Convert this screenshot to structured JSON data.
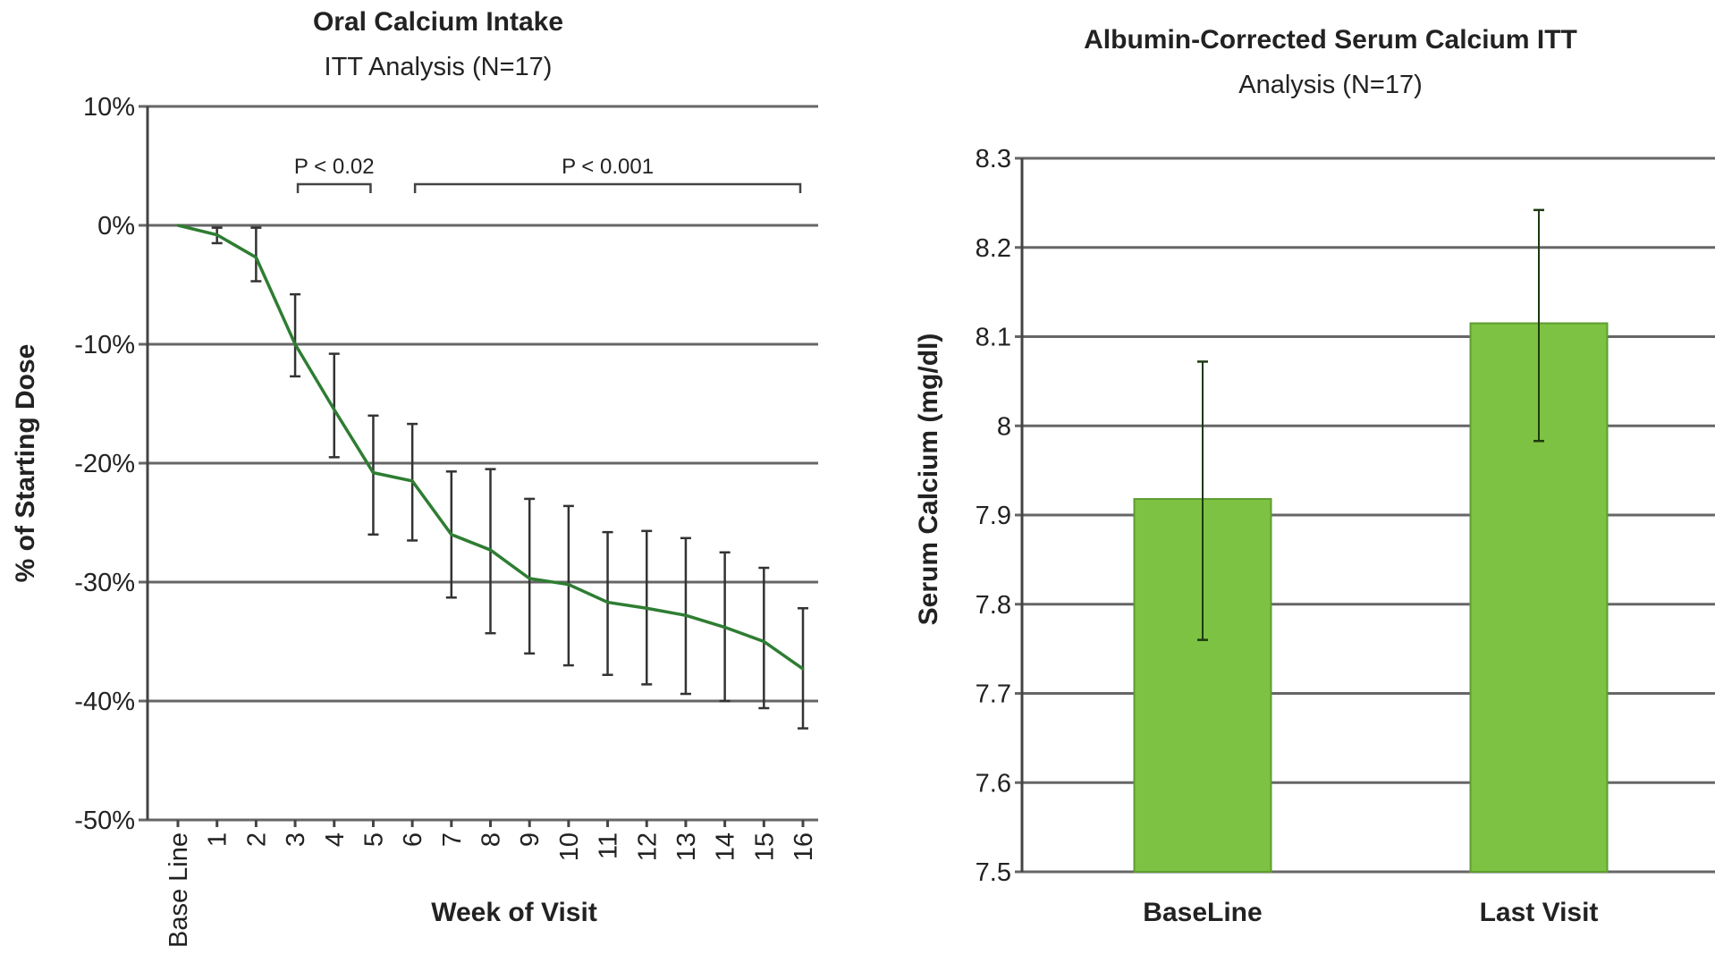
{
  "chart_data": [
    {
      "type": "line",
      "title": "Oral Calcium Intake",
      "subtitle": "ITT Analysis (N=17)",
      "xlabel": "Week of Visit",
      "ylabel": "% of Starting Dose",
      "ylim": [
        -50,
        10
      ],
      "yticks": [
        10,
        0,
        -10,
        -20,
        -30,
        -40,
        -50
      ],
      "ytick_labels": [
        "10%",
        "0%",
        "-10%",
        "-20%",
        "-30%",
        "-40%",
        "-50%"
      ],
      "categories": [
        "Base Line",
        "1",
        "2",
        "3",
        "4",
        "5",
        "6",
        "7",
        "8",
        "9",
        "10",
        "11",
        "12",
        "13",
        "14",
        "15",
        "16"
      ],
      "values": [
        0,
        -0.8,
        -2.7,
        -10,
        -15.5,
        -20.8,
        -21.5,
        -26,
        -27.3,
        -29.7,
        -30.2,
        -31.7,
        -32.2,
        -32.8,
        -33.8,
        -35,
        -37.3
      ],
      "error_low": [
        null,
        -1.5,
        -4.7,
        -12.7,
        -19.5,
        -26,
        -26.5,
        -31.3,
        -34.3,
        -36,
        -37,
        -37.8,
        -38.6,
        -39.4,
        -40,
        -40.6,
        -42.3
      ],
      "error_high": [
        null,
        -0.2,
        -0.2,
        -5.8,
        -10.8,
        -16,
        -16.7,
        -20.7,
        -20.5,
        -23,
        -23.6,
        -25.8,
        -25.7,
        -26.3,
        -27.5,
        -28.8,
        -32.2
      ],
      "grid": true,
      "line_color": "#2e7d32",
      "annotations": [
        {
          "text": "P < 0.02",
          "from": "3",
          "to": "5"
        },
        {
          "text": "P < 0.001",
          "from": "6",
          "to": "16"
        }
      ]
    },
    {
      "type": "bar",
      "title": "Albumin-Corrected Serum Calcium ITT",
      "subtitle": "Analysis (N=17)",
      "xlabel": "",
      "ylabel": "Serum Calcium (mg/dl)",
      "ylim": [
        7.5,
        8.3
      ],
      "yticks": [
        8.3,
        8.2,
        8.1,
        8,
        7.9,
        7.8,
        7.7,
        7.6,
        7.5
      ],
      "ytick_labels": [
        "8.3",
        "8.2",
        "8.1",
        "8",
        "7.9",
        "7.8",
        "7.7",
        "7.6",
        "7.5"
      ],
      "categories": [
        "BaseLine",
        "Last Visit"
      ],
      "values": [
        7.918,
        8.115
      ],
      "error_low": [
        7.76,
        7.983
      ],
      "error_high": [
        8.072,
        8.242
      ],
      "grid": true,
      "bar_color": "#7dc242"
    }
  ]
}
